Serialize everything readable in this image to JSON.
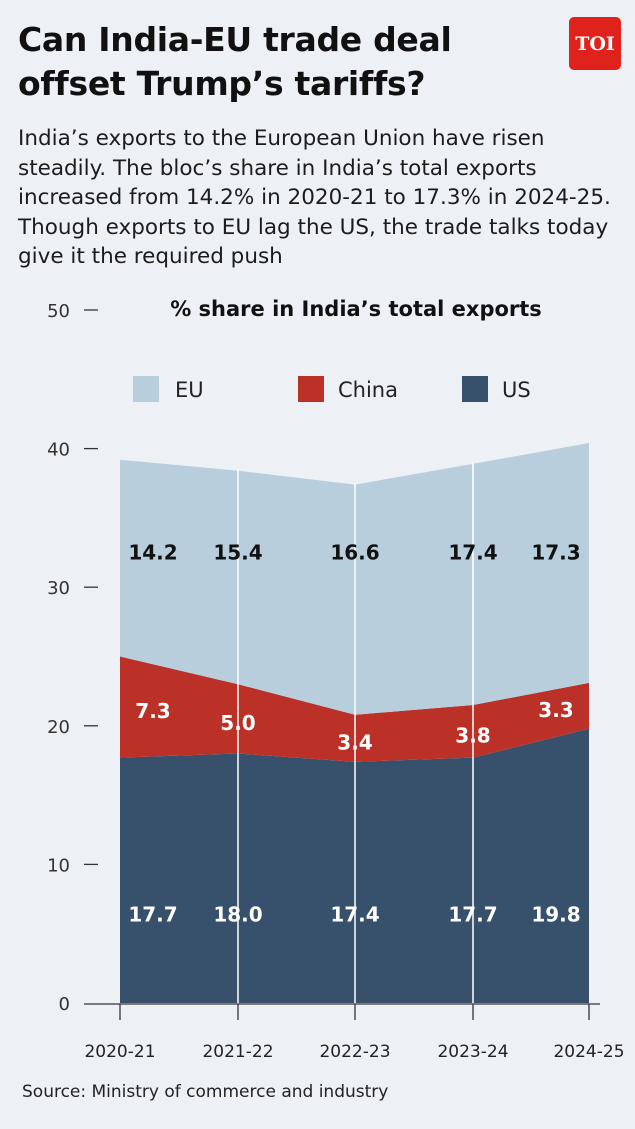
{
  "header": {
    "title": "Can India-EU trade deal offset Trump’s tariffs?",
    "logo_text": "TOI",
    "subtitle": "India’s exports to the European Union have risen steadily. The bloc’s share in India’s total exports increased from 14.2% in 2020-21 to 17.3% in 2024-25. Though exports to EU lag the US, the trade talks today give it the required push"
  },
  "chart_data": {
    "type": "area",
    "stacked": true,
    "title": "% share in India’s total exports",
    "categories": [
      "2020-21",
      "2021-22",
      "2022-23",
      "2023-24",
      "2024-25"
    ],
    "ylim": [
      0,
      50
    ],
    "yticks": [
      0,
      10,
      20,
      30,
      40,
      50
    ],
    "grid": false,
    "legend_position": "top",
    "series": [
      {
        "name": "US",
        "color": "#37506c",
        "label_color": "#ffffff",
        "values": [
          17.7,
          18.0,
          17.4,
          17.7,
          19.8
        ]
      },
      {
        "name": "China",
        "color": "#bb3128",
        "label_color": "#ffffff",
        "values": [
          7.3,
          5.0,
          3.4,
          3.8,
          3.3
        ]
      },
      {
        "name": "EU",
        "color": "#b8cedc",
        "label_color": "#111111",
        "values": [
          14.2,
          15.4,
          16.6,
          17.4,
          17.3
        ]
      }
    ],
    "legend_order": [
      "EU",
      "China",
      "US"
    ]
  },
  "footer": {
    "source": "Source: Ministry of commerce and industry"
  }
}
